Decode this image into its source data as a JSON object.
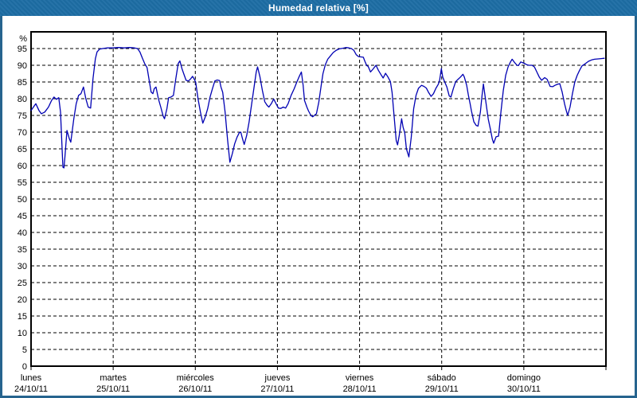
{
  "window": {
    "title": "Humedad relativa [%]"
  },
  "colors": {
    "titlebar": "#1d6da4",
    "window_border": "#26648e",
    "plot_background": "#ffffff",
    "grid": "#000000",
    "frame": "#000000",
    "line": "#0000b3",
    "text": "#000000"
  },
  "chart_data": {
    "type": "line",
    "title": "Humedad relativa [%]",
    "xlabel": "",
    "ylabel": "%",
    "ylim": [
      0,
      100
    ],
    "yticks": [
      0,
      5,
      10,
      15,
      20,
      25,
      30,
      35,
      40,
      45,
      50,
      55,
      60,
      65,
      70,
      75,
      80,
      85,
      90,
      95
    ],
    "grid": "dashed",
    "legend_position": "none",
    "x_hours_total": 168,
    "days": [
      {
        "name": "lunes",
        "date": "24/10/11"
      },
      {
        "name": "martes",
        "date": "25/10/11"
      },
      {
        "name": "miércoles",
        "date": "26/10/11"
      },
      {
        "name": "jueves",
        "date": "27/10/11"
      },
      {
        "name": "viernes",
        "date": "28/10/11"
      },
      {
        "name": "sábado",
        "date": "29/10/11"
      },
      {
        "name": "domingo",
        "date": "30/10/11"
      }
    ],
    "series": [
      {
        "name": "Humedad relativa",
        "color": "#0000b3",
        "points": [
          [
            0,
            76.5
          ],
          [
            0.7,
            77.5
          ],
          [
            1.4,
            78.5
          ],
          [
            2.3,
            76.5
          ],
          [
            3,
            75.5
          ],
          [
            4,
            76
          ],
          [
            5.1,
            77.5
          ],
          [
            6,
            79.5
          ],
          [
            6.7,
            80.5
          ],
          [
            7.4,
            79.8
          ],
          [
            8.1,
            80.3
          ],
          [
            8.6,
            76
          ],
          [
            9.3,
            59.5
          ],
          [
            9.6,
            59.3
          ],
          [
            9.9,
            62.5
          ],
          [
            10.5,
            70.5
          ],
          [
            11.2,
            68
          ],
          [
            11.6,
            67
          ],
          [
            12.5,
            74
          ],
          [
            13.2,
            78.5
          ],
          [
            13.9,
            81
          ],
          [
            14.6,
            81.5
          ],
          [
            15.3,
            83.5
          ],
          [
            16,
            80
          ],
          [
            16.7,
            77.5
          ],
          [
            17.4,
            77.2
          ],
          [
            18.1,
            86
          ],
          [
            18.8,
            92
          ],
          [
            19.3,
            94
          ],
          [
            20,
            94.8
          ],
          [
            20.9,
            95
          ],
          [
            22.3,
            95.2
          ],
          [
            23.9,
            95.2
          ],
          [
            25.6,
            95.3
          ],
          [
            27.2,
            95.2
          ],
          [
            28.8,
            95.3
          ],
          [
            30.2,
            95.2
          ],
          [
            31.1,
            95
          ],
          [
            31.8,
            94
          ],
          [
            32.5,
            92.2
          ],
          [
            33.2,
            90.5
          ],
          [
            33.9,
            89.3
          ],
          [
            34.6,
            85
          ],
          [
            35.1,
            82
          ],
          [
            35.6,
            81.5
          ],
          [
            36,
            83
          ],
          [
            36.5,
            83.5
          ],
          [
            37.2,
            80
          ],
          [
            37.9,
            77.5
          ],
          [
            38.6,
            74.8
          ],
          [
            39,
            74
          ],
          [
            39.7,
            77
          ],
          [
            40.2,
            80.3
          ],
          [
            40.9,
            80.5
          ],
          [
            41.6,
            81
          ],
          [
            42.3,
            86
          ],
          [
            43,
            90.5
          ],
          [
            43.5,
            91.3
          ],
          [
            44.1,
            89
          ],
          [
            44.6,
            87.5
          ],
          [
            45.3,
            85.5
          ],
          [
            46,
            85.3
          ],
          [
            46.7,
            86
          ],
          [
            47.2,
            86.7
          ],
          [
            47.6,
            86
          ],
          [
            48.1,
            85
          ],
          [
            48.8,
            80
          ],
          [
            49.5,
            76
          ],
          [
            50.2,
            72.7
          ],
          [
            50.9,
            74.5
          ],
          [
            51.6,
            77
          ],
          [
            52.3,
            80.5
          ],
          [
            53,
            83
          ],
          [
            53.7,
            85.3
          ],
          [
            54.4,
            85.6
          ],
          [
            55.1,
            85.4
          ],
          [
            55.5,
            83.5
          ],
          [
            56,
            81.9
          ],
          [
            56.7,
            76
          ],
          [
            57.4,
            68
          ],
          [
            58.1,
            61
          ],
          [
            58.8,
            63.5
          ],
          [
            59.5,
            66.5
          ],
          [
            60.2,
            68.5
          ],
          [
            60.9,
            69.9
          ],
          [
            61.3,
            70
          ],
          [
            61.8,
            68
          ],
          [
            62.3,
            66.3
          ],
          [
            63,
            69
          ],
          [
            63.7,
            73
          ],
          [
            64.4,
            78
          ],
          [
            65.1,
            83
          ],
          [
            65.8,
            88
          ],
          [
            66.2,
            89.5
          ],
          [
            66.9,
            86.5
          ],
          [
            67.6,
            82.5
          ],
          [
            68.3,
            79.1
          ],
          [
            69,
            78
          ],
          [
            69.5,
            77.5
          ],
          [
            70.2,
            78.5
          ],
          [
            70.9,
            79.9
          ],
          [
            71.6,
            78.5
          ],
          [
            72.3,
            77.2
          ],
          [
            73,
            77.1
          ],
          [
            73.7,
            77.5
          ],
          [
            74.4,
            77.2
          ],
          [
            75.1,
            78.5
          ],
          [
            76,
            81
          ],
          [
            76.9,
            83
          ],
          [
            77.6,
            84.8
          ],
          [
            78.3,
            86.5
          ],
          [
            79,
            88
          ],
          [
            79.5,
            84
          ],
          [
            79.9,
            79.5
          ],
          [
            80.6,
            77.5
          ],
          [
            81.1,
            76.3
          ],
          [
            81.8,
            75
          ],
          [
            82.3,
            74.6
          ],
          [
            83,
            75.2
          ],
          [
            83.4,
            75.5
          ],
          [
            84.1,
            79
          ],
          [
            84.8,
            84
          ],
          [
            85.3,
            87.5
          ],
          [
            86,
            90.2
          ],
          [
            86.7,
            91.8
          ],
          [
            87.4,
            92.7
          ],
          [
            88.3,
            93.8
          ],
          [
            89.2,
            94.5
          ],
          [
            90.1,
            94.9
          ],
          [
            91.1,
            95.1
          ],
          [
            92,
            95.3
          ],
          [
            92.9,
            95.2
          ],
          [
            93.6,
            95
          ],
          [
            94.3,
            94.5
          ],
          [
            95,
            93.2
          ],
          [
            95.7,
            92.6
          ],
          [
            96.4,
            92.5
          ],
          [
            97.1,
            92.4
          ],
          [
            97.6,
            91.1
          ],
          [
            98.1,
            89.9
          ],
          [
            98.5,
            89.7
          ],
          [
            99.2,
            88
          ],
          [
            99.9,
            88.8
          ],
          [
            100.8,
            90
          ],
          [
            101.5,
            88.5
          ],
          [
            102.2,
            87.3
          ],
          [
            102.9,
            86.2
          ],
          [
            103.6,
            87.6
          ],
          [
            104.3,
            86.5
          ],
          [
            105,
            85.1
          ],
          [
            105.5,
            81.9
          ],
          [
            106,
            76
          ],
          [
            106.7,
            67.5
          ],
          [
            107.1,
            66.2
          ],
          [
            107.6,
            69
          ],
          [
            108.3,
            74
          ],
          [
            108.7,
            71.5
          ],
          [
            109.2,
            69.8
          ],
          [
            109.7,
            65
          ],
          [
            110.4,
            62.6
          ],
          [
            111.1,
            68.5
          ],
          [
            111.8,
            77
          ],
          [
            112.5,
            81
          ],
          [
            113.2,
            83.1
          ],
          [
            114.1,
            84
          ],
          [
            114.8,
            83.7
          ],
          [
            115.5,
            83.2
          ],
          [
            116.2,
            81.8
          ],
          [
            116.9,
            80.7
          ],
          [
            117.6,
            81.5
          ],
          [
            118.3,
            83.1
          ],
          [
            119,
            84.3
          ],
          [
            119.4,
            85.5
          ],
          [
            119.9,
            89
          ],
          [
            120.3,
            86.5
          ],
          [
            120.8,
            85.2
          ],
          [
            121.5,
            83.5
          ],
          [
            122.2,
            80.8
          ],
          [
            122.7,
            80.5
          ],
          [
            123.4,
            83
          ],
          [
            124.1,
            85.1
          ],
          [
            124.8,
            85.8
          ],
          [
            125.5,
            86.5
          ],
          [
            126.2,
            87.3
          ],
          [
            126.6,
            86.5
          ],
          [
            127.3,
            84
          ],
          [
            127.8,
            81.1
          ],
          [
            128.3,
            78.5
          ],
          [
            128.7,
            76.3
          ],
          [
            129.4,
            73.1
          ],
          [
            130.1,
            72
          ],
          [
            130.6,
            71.8
          ],
          [
            131.3,
            76
          ],
          [
            131.8,
            81
          ],
          [
            132.2,
            84.4
          ],
          [
            132.9,
            79
          ],
          [
            133.6,
            73.9
          ],
          [
            134.3,
            70.5
          ],
          [
            134.8,
            67.9
          ],
          [
            135.2,
            66.7
          ],
          [
            135.9,
            68.6
          ],
          [
            136.6,
            68.8
          ],
          [
            137.3,
            76
          ],
          [
            138,
            82.5
          ],
          [
            138.7,
            87
          ],
          [
            139.4,
            89.5
          ],
          [
            140.1,
            91
          ],
          [
            140.6,
            91.8
          ],
          [
            141.3,
            90.8
          ],
          [
            142,
            90
          ],
          [
            142.4,
            89.9
          ],
          [
            143.1,
            91
          ],
          [
            144.1,
            90.6
          ],
          [
            144.8,
            90.2
          ],
          [
            145.5,
            90
          ],
          [
            146.4,
            90
          ],
          [
            147.1,
            89.5
          ],
          [
            147.8,
            88
          ],
          [
            148.5,
            86.5
          ],
          [
            149.2,
            85.5
          ],
          [
            150.1,
            86.3
          ],
          [
            150.8,
            85.8
          ],
          [
            151.7,
            83.7
          ],
          [
            152.4,
            83.6
          ],
          [
            153.1,
            84
          ],
          [
            153.8,
            84.3
          ],
          [
            154.5,
            84.5
          ],
          [
            155.2,
            82
          ],
          [
            155.9,
            78.5
          ],
          [
            156.4,
            76.5
          ],
          [
            156.8,
            75
          ],
          [
            157.5,
            77.5
          ],
          [
            158.2,
            81.5
          ],
          [
            158.9,
            85
          ],
          [
            159.6,
            87
          ],
          [
            160.3,
            88.5
          ],
          [
            161,
            89.8
          ],
          [
            162,
            90.5
          ],
          [
            162.9,
            91.2
          ],
          [
            163.8,
            91.6
          ],
          [
            164.7,
            91.8
          ],
          [
            165.7,
            91.9
          ],
          [
            166.6,
            92
          ],
          [
            167.5,
            92.1
          ]
        ]
      }
    ]
  }
}
